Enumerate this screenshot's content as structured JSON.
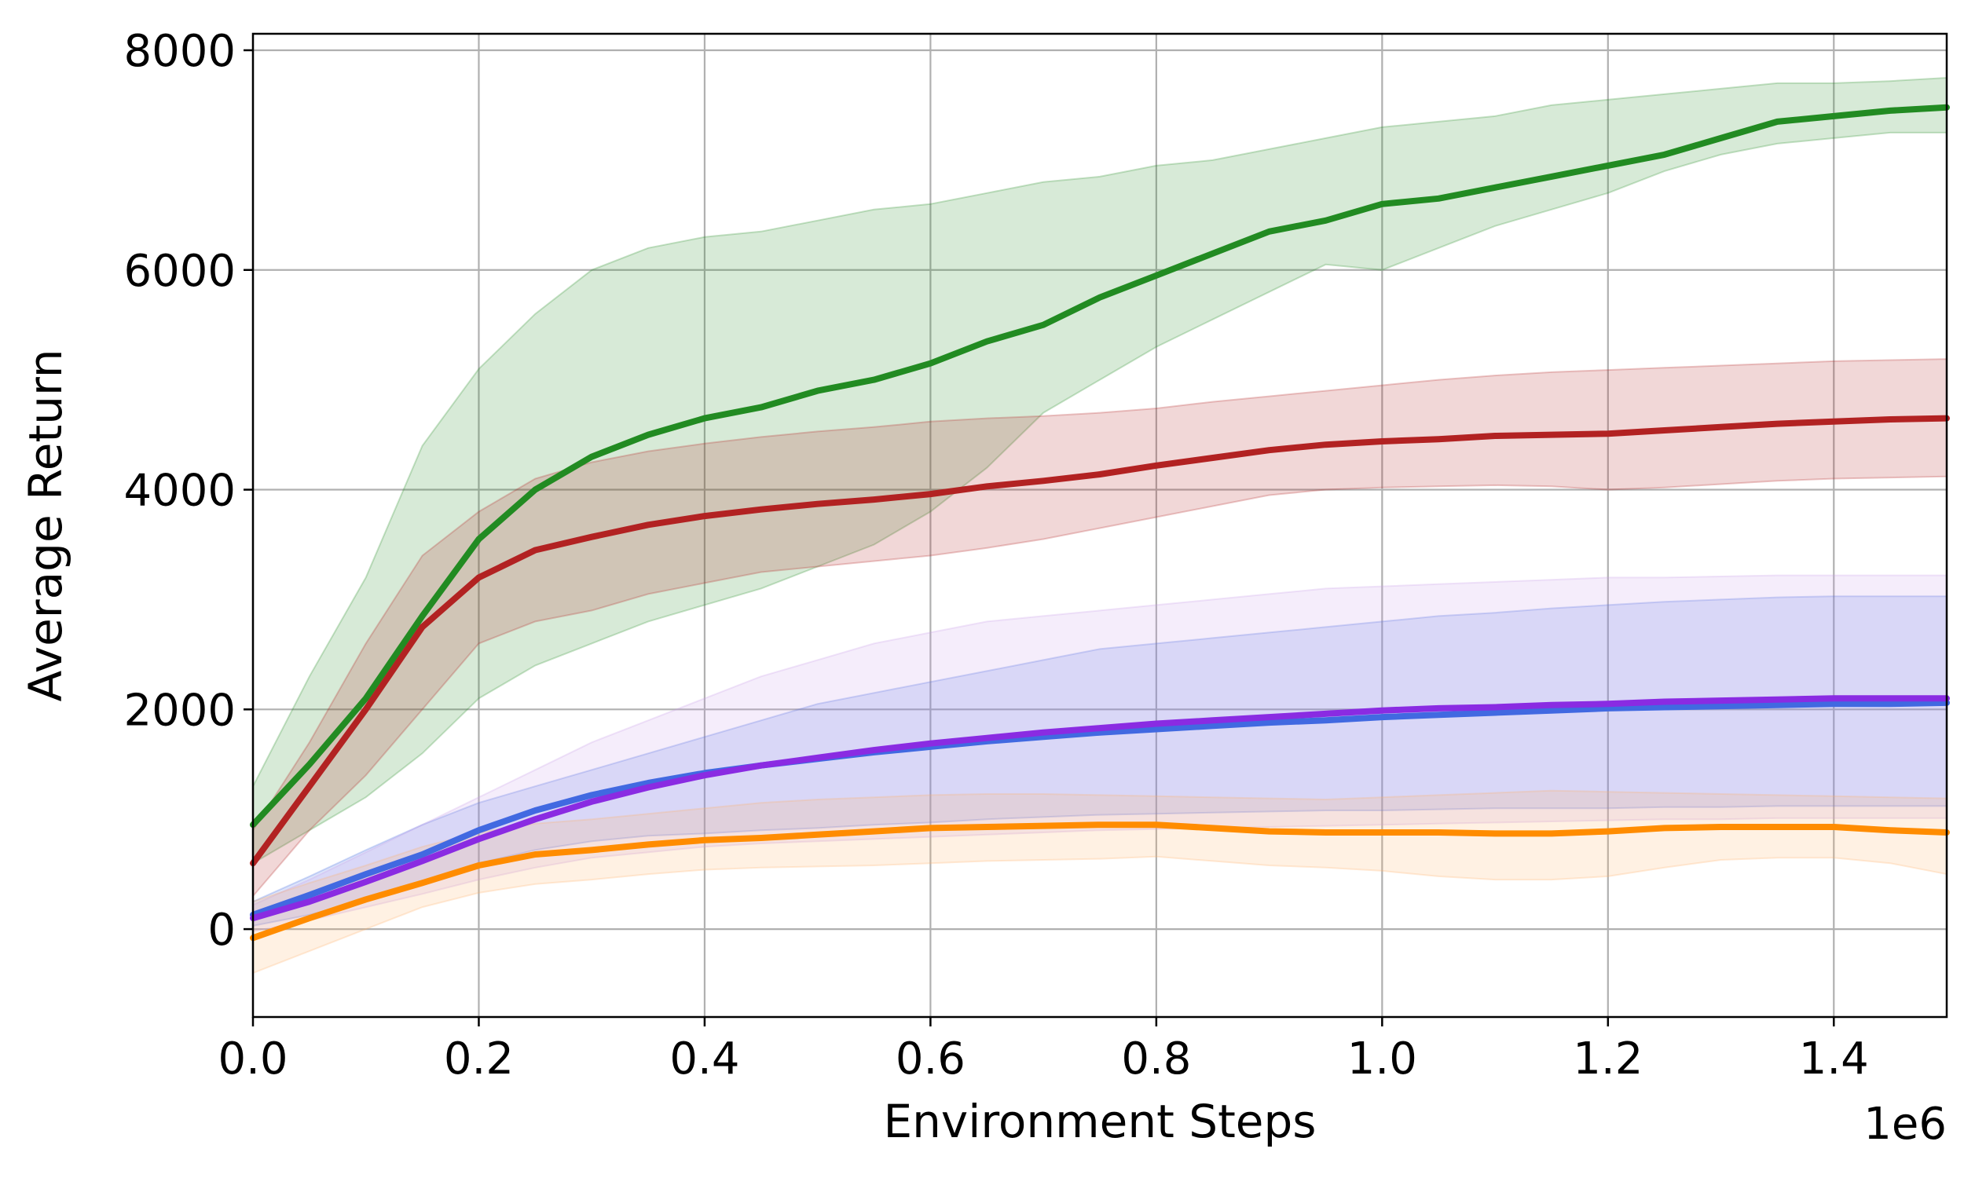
{
  "chart_data": {
    "type": "line",
    "title": "",
    "xlabel": "Environment Steps",
    "ylabel": "Average Return",
    "x_offset_label": "1e6",
    "xlim": [
      0,
      1500000
    ],
    "ylim": [
      -800,
      8150
    ],
    "x_ticks": [
      0,
      200000,
      400000,
      600000,
      800000,
      1000000,
      1200000,
      1400000
    ],
    "x_tick_labels": [
      "0.0",
      "0.2",
      "0.4",
      "0.6",
      "0.8",
      "1.0",
      "1.2",
      "1.4"
    ],
    "y_ticks": [
      0,
      2000,
      4000,
      6000,
      8000
    ],
    "y_tick_labels": [
      "0",
      "2000",
      "4000",
      "6000",
      "8000"
    ],
    "grid": true,
    "legend": "none",
    "x": [
      0,
      50000,
      100000,
      150000,
      200000,
      250000,
      300000,
      350000,
      400000,
      450000,
      500000,
      550000,
      600000,
      650000,
      700000,
      750000,
      800000,
      850000,
      900000,
      950000,
      1000000,
      1050000,
      1100000,
      1150000,
      1200000,
      1250000,
      1300000,
      1350000,
      1400000,
      1450000,
      1500000
    ],
    "series": [
      {
        "color": "#228b22",
        "fill_color": "#228b22",
        "values": [
          950,
          1500,
          2100,
          2850,
          3550,
          4000,
          4300,
          4500,
          4650,
          4750,
          4900,
          5000,
          5150,
          5350,
          5500,
          5750,
          5950,
          6150,
          6350,
          6450,
          6600,
          6650,
          6750,
          6850,
          6950,
          7050,
          7200,
          7350,
          7400,
          7450,
          7480
        ],
        "upper": [
          1300,
          2300,
          3200,
          4400,
          5100,
          5600,
          6000,
          6200,
          6300,
          6350,
          6450,
          6550,
          6600,
          6700,
          6800,
          6850,
          6950,
          7000,
          7100,
          7200,
          7300,
          7350,
          7400,
          7500,
          7550,
          7600,
          7650,
          7700,
          7700,
          7720,
          7750
        ],
        "lower": [
          600,
          900,
          1200,
          1600,
          2100,
          2400,
          2600,
          2800,
          2950,
          3100,
          3300,
          3500,
          3800,
          4200,
          4700,
          5000,
          5300,
          5550,
          5800,
          6050,
          6000,
          6200,
          6400,
          6550,
          6700,
          6900,
          7050,
          7150,
          7200,
          7250,
          7250
        ]
      },
      {
        "color": "#b22222",
        "fill_color": "#b22222",
        "values": [
          600,
          1300,
          2000,
          2750,
          3200,
          3450,
          3570,
          3680,
          3760,
          3820,
          3870,
          3910,
          3960,
          4030,
          4080,
          4140,
          4220,
          4290,
          4360,
          4410,
          4440,
          4460,
          4490,
          4500,
          4510,
          4540,
          4570,
          4600,
          4620,
          4640,
          4650
        ],
        "upper": [
          900,
          1700,
          2600,
          3400,
          3800,
          4100,
          4250,
          4350,
          4420,
          4480,
          4530,
          4570,
          4620,
          4650,
          4670,
          4700,
          4740,
          4800,
          4850,
          4900,
          4950,
          5000,
          5040,
          5070,
          5090,
          5110,
          5130,
          5150,
          5170,
          5180,
          5190
        ],
        "lower": [
          300,
          900,
          1400,
          2000,
          2600,
          2800,
          2900,
          3050,
          3150,
          3250,
          3300,
          3350,
          3400,
          3470,
          3550,
          3650,
          3750,
          3850,
          3950,
          4000,
          4020,
          4030,
          4040,
          4030,
          4000,
          4020,
          4050,
          4080,
          4100,
          4110,
          4120
        ]
      },
      {
        "color": "#4169e1",
        "fill_color": "#4169e1",
        "values": [
          130,
          310,
          500,
          680,
          900,
          1080,
          1220,
          1330,
          1420,
          1490,
          1550,
          1610,
          1660,
          1710,
          1750,
          1790,
          1820,
          1850,
          1880,
          1900,
          1930,
          1950,
          1970,
          1990,
          2010,
          2020,
          2030,
          2040,
          2050,
          2050,
          2060
        ],
        "upper": [
          250,
          480,
          720,
          950,
          1150,
          1300,
          1450,
          1600,
          1750,
          1900,
          2050,
          2150,
          2250,
          2350,
          2450,
          2550,
          2600,
          2650,
          2700,
          2750,
          2800,
          2850,
          2880,
          2920,
          2950,
          2980,
          3000,
          3020,
          3030,
          3030,
          3030
        ],
        "lower": [
          30,
          130,
          260,
          400,
          600,
          720,
          800,
          850,
          870,
          900,
          920,
          950,
          970,
          1000,
          1020,
          1040,
          1050,
          1060,
          1070,
          1080,
          1080,
          1090,
          1100,
          1100,
          1100,
          1110,
          1110,
          1120,
          1120,
          1120,
          1120
        ]
      },
      {
        "color": "#8a2be2",
        "fill_color": "#c89ae8",
        "values": [
          100,
          250,
          430,
          620,
          820,
          1000,
          1160,
          1290,
          1400,
          1490,
          1560,
          1630,
          1690,
          1740,
          1790,
          1830,
          1870,
          1900,
          1930,
          1960,
          1990,
          2010,
          2020,
          2040,
          2050,
          2070,
          2080,
          2090,
          2100,
          2100,
          2100
        ],
        "upper": [
          220,
          450,
          700,
          950,
          1200,
          1450,
          1700,
          1900,
          2100,
          2300,
          2450,
          2600,
          2700,
          2800,
          2850,
          2900,
          2950,
          3000,
          3050,
          3100,
          3120,
          3140,
          3160,
          3180,
          3200,
          3200,
          3210,
          3220,
          3220,
          3220,
          3220
        ],
        "lower": [
          -20,
          80,
          200,
          320,
          450,
          560,
          650,
          700,
          750,
          780,
          800,
          820,
          840,
          860,
          880,
          900,
          910,
          920,
          930,
          940,
          950,
          960,
          970,
          980,
          990,
          1000,
          1000,
          1010,
          1010,
          1010,
          1010
        ]
      },
      {
        "color": "#ff8c00",
        "fill_color": "#ffb066",
        "values": [
          -80,
          100,
          270,
          420,
          580,
          680,
          720,
          770,
          810,
          830,
          860,
          890,
          920,
          930,
          940,
          950,
          950,
          920,
          890,
          880,
          880,
          880,
          870,
          870,
          890,
          920,
          930,
          930,
          930,
          900,
          880
        ],
        "upper": [
          250,
          420,
          580,
          750,
          880,
          960,
          1000,
          1050,
          1100,
          1150,
          1180,
          1200,
          1220,
          1230,
          1230,
          1220,
          1210,
          1200,
          1190,
          1180,
          1200,
          1220,
          1240,
          1260,
          1250,
          1240,
          1230,
          1220,
          1210,
          1200,
          1190
        ],
        "lower": [
          -400,
          -200,
          0,
          200,
          330,
          410,
          450,
          500,
          540,
          560,
          570,
          580,
          600,
          620,
          630,
          640,
          660,
          620,
          580,
          560,
          530,
          480,
          450,
          450,
          480,
          560,
          630,
          650,
          650,
          600,
          500
        ]
      }
    ]
  }
}
